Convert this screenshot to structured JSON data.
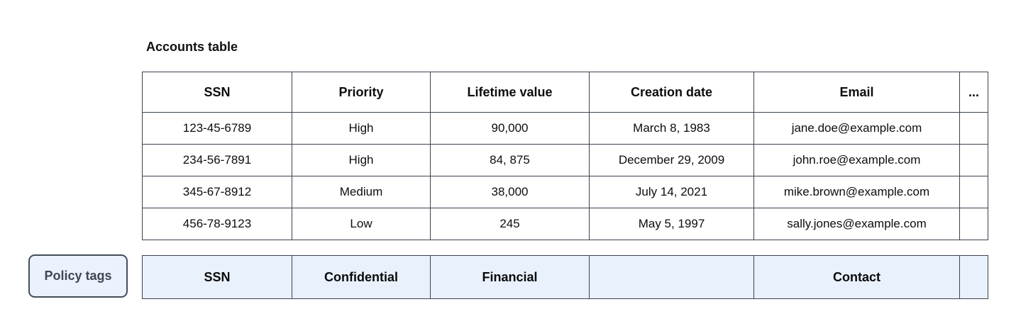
{
  "title": "Accounts table",
  "accounts_table": {
    "headers": [
      "SSN",
      "Priority",
      "Lifetime value",
      "Creation date",
      "Email",
      "..."
    ],
    "rows": [
      [
        "123-45-6789",
        "High",
        "90,000",
        "March 8, 1983",
        "jane.doe@example.com",
        ""
      ],
      [
        "234-56-7891",
        "High",
        "84, 875",
        "December 29, 2009",
        "john.roe@example.com",
        ""
      ],
      [
        "345-67-8912",
        "Medium",
        "38,000",
        "July 14, 2021",
        "mike.brown@example.com",
        ""
      ],
      [
        "456-78-9123",
        "Low",
        "245",
        "May 5, 1997",
        "sally.jones@example.com",
        ""
      ]
    ]
  },
  "policy": {
    "button_label": "Policy tags",
    "tags": [
      "SSN",
      "Confidential",
      "Financial",
      "",
      "Contact",
      ""
    ]
  },
  "colors": {
    "table_border": "#3b4350",
    "policy_row_bg": "#e9f1fd",
    "policy_button_bg": "#ecf2fd",
    "policy_button_border": "#454d59",
    "policy_button_text": "#3e4755",
    "text_color": "#0d0d0d"
  }
}
